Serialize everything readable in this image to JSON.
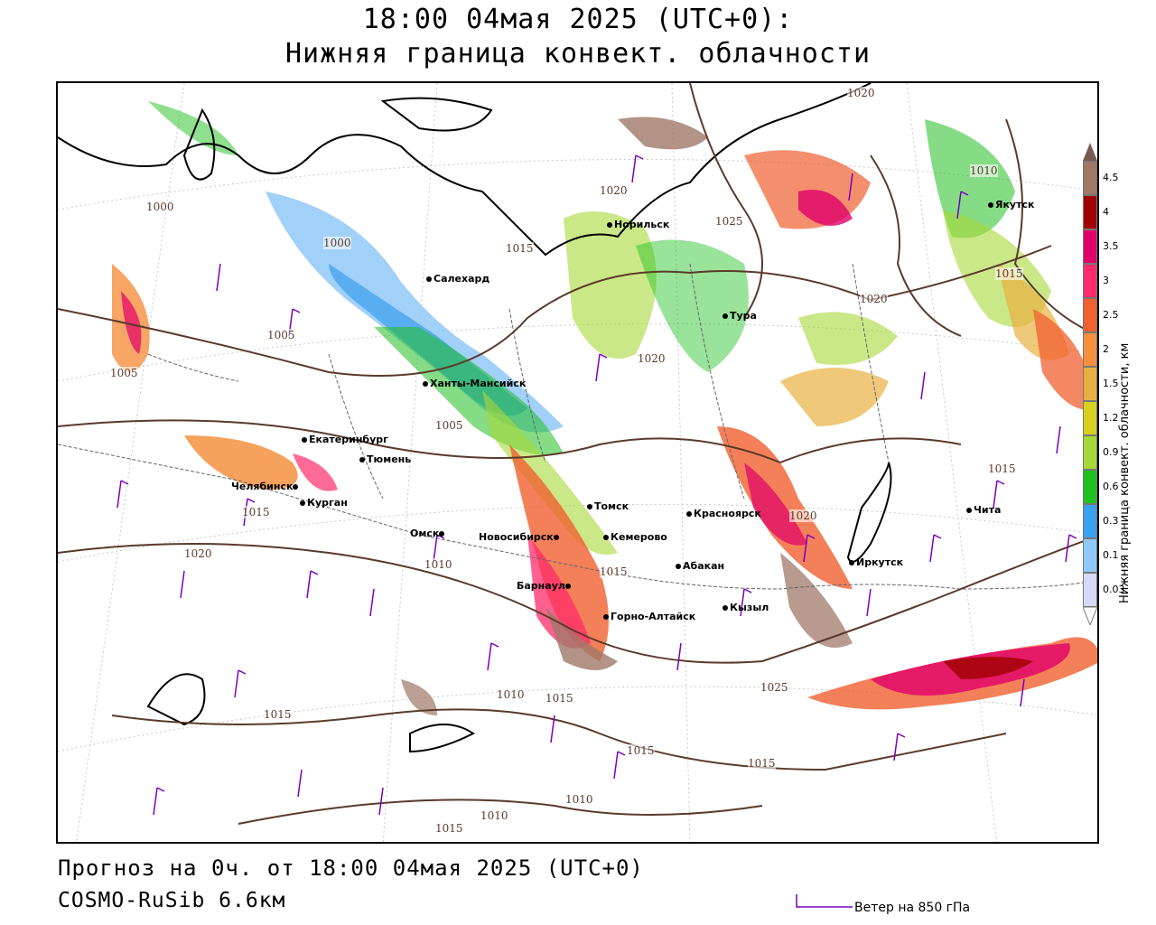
{
  "header": {
    "title_line1": "18:00 04мая 2025 (UTC+0):",
    "title_line2": "Нижняя граница конвект. облачности"
  },
  "footer": {
    "forecast": "Прогноз на 0ч. от 18:00 04мая 2025 (UTC+0)",
    "model": "COSMO-RuSib 6.6км",
    "wind_legend": "Ветер на 850 гПа"
  },
  "legend": {
    "title": "Нижняя граница конвект. облачности, км",
    "items": [
      {
        "label": "4.5",
        "color": "#a07868"
      },
      {
        "label": "4",
        "color": "#a00000"
      },
      {
        "label": "3.5",
        "color": "#e0006a"
      },
      {
        "label": "3",
        "color": "#ff2b6a"
      },
      {
        "label": "2.5",
        "color": "#f06030"
      },
      {
        "label": "2",
        "color": "#f59040"
      },
      {
        "label": "1.5",
        "color": "#e8b040"
      },
      {
        "label": "1.2",
        "color": "#d8d020"
      },
      {
        "label": "0.9",
        "color": "#a8d838"
      },
      {
        "label": "0.6",
        "color": "#20c020"
      },
      {
        "label": "0.3",
        "color": "#3aa0f0"
      },
      {
        "label": "0.1",
        "color": "#90c8f8"
      },
      {
        "label": "0.03",
        "color": "#d8d8f8"
      }
    ]
  },
  "cities": [
    {
      "name": "Норильск",
      "id": "norilsk"
    },
    {
      "name": "Якутск",
      "id": "yakutsk"
    },
    {
      "name": "Салехард",
      "id": "salekhard"
    },
    {
      "name": "Тура",
      "id": "tura"
    },
    {
      "name": "Ханты-Мансийск",
      "id": "khanty"
    },
    {
      "name": "Екатеринбург",
      "id": "ekb"
    },
    {
      "name": "Тюмень",
      "id": "tyumen"
    },
    {
      "name": "Челябинск",
      "id": "chelyabinsk"
    },
    {
      "name": "Курган",
      "id": "kurgan"
    },
    {
      "name": "Омск",
      "id": "omsk"
    },
    {
      "name": "Новосибирск",
      "id": "novosibirsk"
    },
    {
      "name": "Томск",
      "id": "tomsk"
    },
    {
      "name": "Кемерово",
      "id": "kemerovo"
    },
    {
      "name": "Красноярск",
      "id": "krasnoyarsk"
    },
    {
      "name": "Абакан",
      "id": "abakan"
    },
    {
      "name": "Барнаул",
      "id": "barnaul"
    },
    {
      "name": "Горно-Алтайск",
      "id": "gorno"
    },
    {
      "name": "Кызыл",
      "id": "kyzyl"
    },
    {
      "name": "Иркутск",
      "id": "irkutsk"
    },
    {
      "name": "Чита",
      "id": "chita"
    }
  ],
  "isobars": [
    "1020",
    "1015",
    "1010",
    "1000",
    "1000",
    "1005",
    "1005",
    "1005",
    "1020",
    "1025",
    "1015",
    "1020",
    "1020",
    "1015",
    "1015",
    "1020",
    "1015",
    "1010",
    "1010",
    "1015",
    "1015",
    "1020",
    "1025",
    "1010",
    "1010",
    "1015",
    "1015",
    "1015"
  ]
}
